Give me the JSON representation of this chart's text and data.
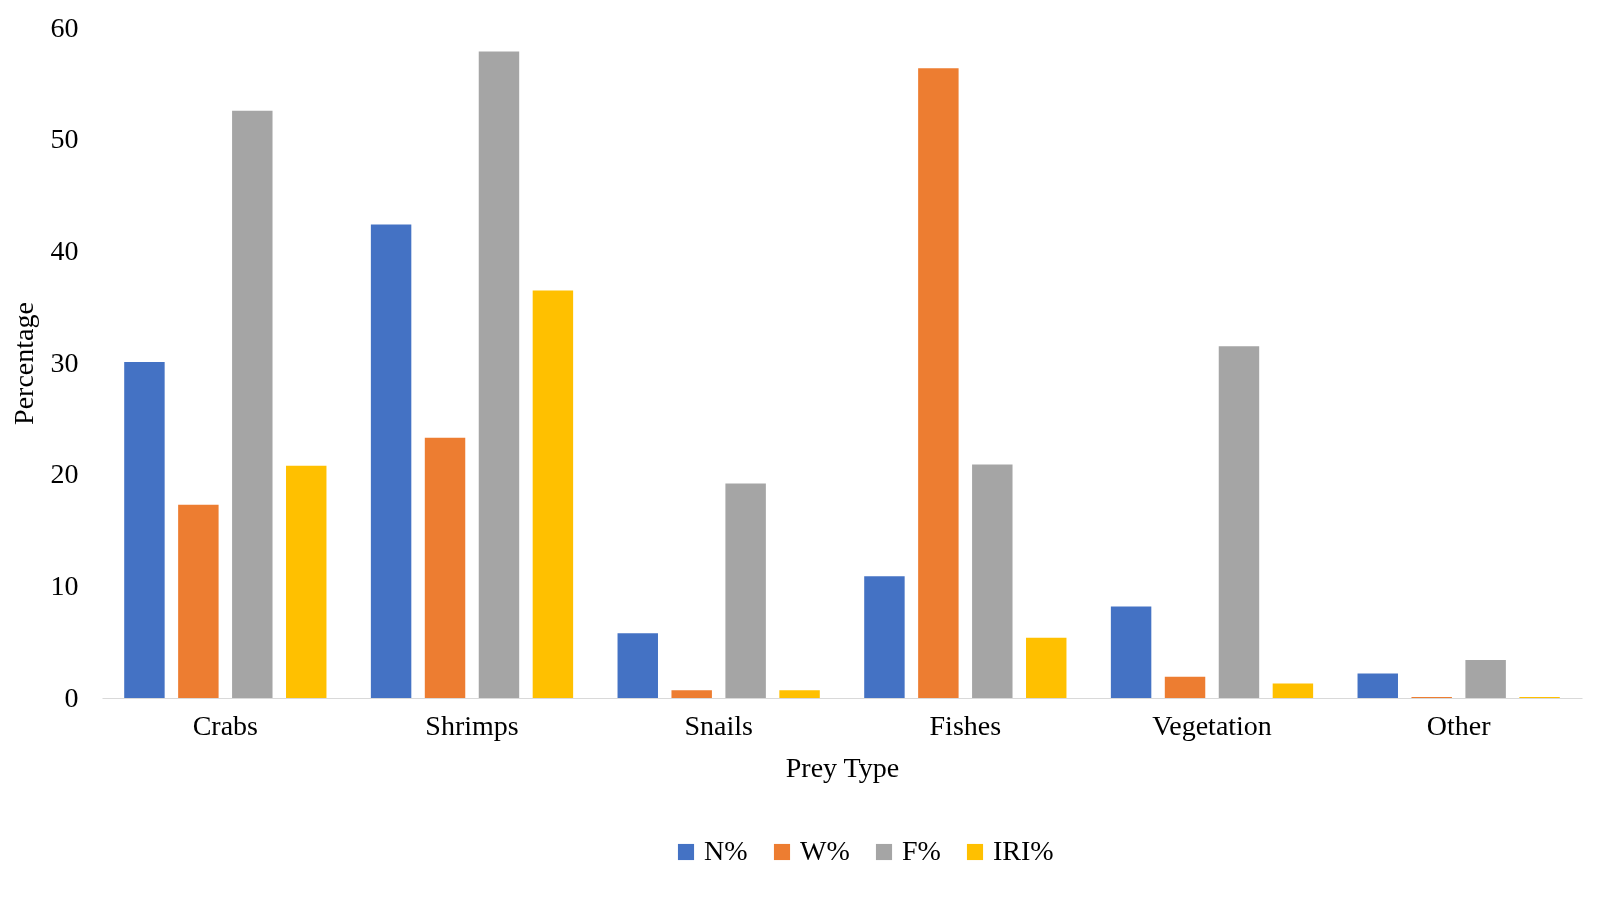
{
  "chart_data": {
    "type": "bar",
    "xlabel": "Prey Type",
    "ylabel": "Percentage",
    "categories": [
      "Crabs",
      "Shrimps",
      "Snails",
      "Fishes",
      "Vegetation",
      "Other"
    ],
    "series": [
      {
        "name": "N%",
        "color": "#4472c4",
        "values": [
          30.1,
          42.4,
          5.8,
          10.9,
          8.2,
          2.2
        ]
      },
      {
        "name": "W%",
        "color": "#ed7d31",
        "values": [
          17.3,
          23.3,
          0.7,
          56.4,
          1.9,
          0.1
        ]
      },
      {
        "name": "F%",
        "color": "#a5a5a5",
        "values": [
          52.6,
          57.9,
          19.2,
          20.9,
          31.5,
          3.4
        ]
      },
      {
        "name": "IRI%",
        "color": "#ffc000",
        "values": [
          20.8,
          36.5,
          0.7,
          5.4,
          1.3,
          0.1
        ]
      }
    ],
    "ylim": [
      0,
      60
    ],
    "yticks": [
      0,
      10,
      20,
      30,
      40,
      50,
      60
    ],
    "grid": false,
    "legend": "bottom"
  }
}
